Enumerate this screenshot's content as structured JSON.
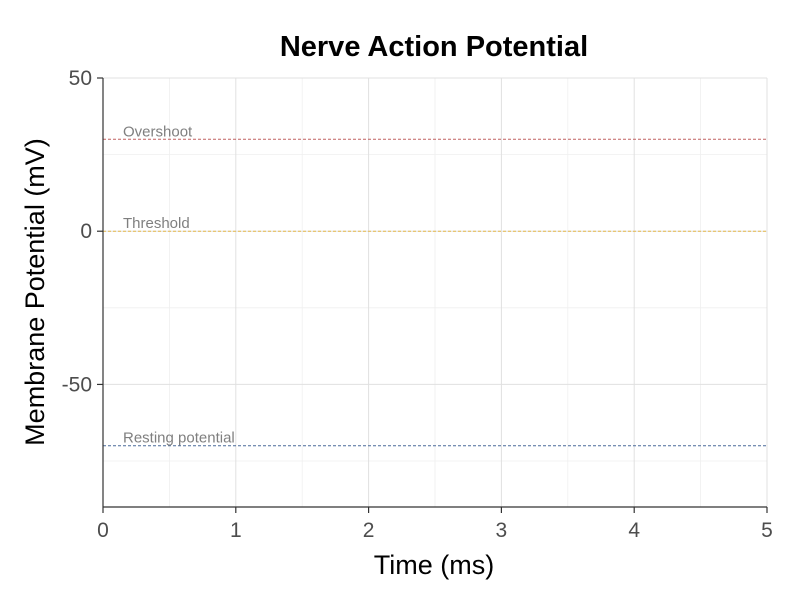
{
  "chart_data": {
    "type": "line",
    "title": "Nerve Action Potential",
    "xlabel": "Time (ms)",
    "ylabel": "Membrane Potential (mV)",
    "xlim": [
      0,
      5
    ],
    "ylim": [
      -90,
      50
    ],
    "x_ticks": [
      0,
      1,
      2,
      3,
      4,
      5
    ],
    "y_ticks": [
      50,
      0,
      -50
    ],
    "x_tick_labels": [
      "0",
      "1",
      "2",
      "3",
      "4",
      "5"
    ],
    "y_tick_labels": [
      "50",
      "0",
      "-50"
    ],
    "grid": true,
    "series": [],
    "reference_lines": [
      {
        "label": "Overshoot",
        "y": 30,
        "color": "#c06060",
        "style": "dashed"
      },
      {
        "label": "Threshold",
        "y": 0,
        "color": "#e6b84a",
        "style": "dashed"
      },
      {
        "label": "Resting potential",
        "y": -70,
        "color": "#4a6a9a",
        "style": "dashed"
      }
    ]
  }
}
